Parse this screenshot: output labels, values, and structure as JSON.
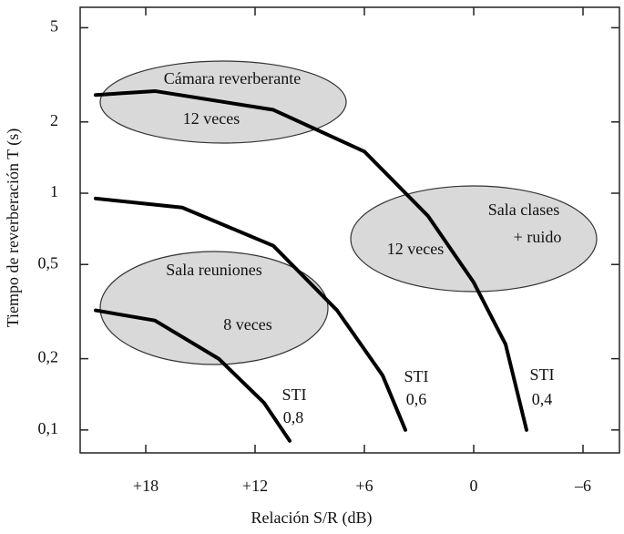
{
  "chart_data": {
    "type": "line",
    "log_y": true,
    "xlabel": "Relación S/R (dB)",
    "ylabel": "Tiempo de reverberación T (s)",
    "xlim": [
      21.6,
      -8
    ],
    "ylim": [
      0.08,
      6.1
    ],
    "xticks": [
      {
        "value": 18,
        "label": "+18"
      },
      {
        "value": 12,
        "label": "+12"
      },
      {
        "value": 6,
        "label": "+6"
      },
      0,
      {
        "value": -6,
        "label": "–6"
      }
    ],
    "yticks": [
      {
        "value": 0.1,
        "label": "0,1"
      },
      {
        "value": 0.2,
        "label": "0,2"
      },
      {
        "value": 0.5,
        "label": "0,5"
      },
      1,
      2,
      5
    ],
    "series": [
      {
        "color": "#000000",
        "x": [
          20.75,
          17.5,
          11,
          6,
          2.5,
          0,
          -1.75,
          -2.9
        ],
        "values": [
          2.6,
          2.7,
          2.25,
          1.5,
          0.8,
          0.42,
          0.23,
          0.1
        ]
      },
      {
        "color": "#000000",
        "x": [
          20.75,
          16,
          11,
          7.5,
          5,
          3.75
        ],
        "values": [
          0.95,
          0.87,
          0.6,
          0.32,
          0.17,
          0.1
        ]
      },
      {
        "color": "#000000",
        "x": [
          20.75,
          17.5,
          14,
          11.5,
          10.1
        ],
        "values": [
          0.32,
          0.29,
          0.2,
          0.13,
          0.09
        ]
      }
    ],
    "annotations": [
      {
        "lines": [
          "Cámara reverberante",
          "12 veces"
        ]
      },
      {
        "lines": [
          "Sala clases",
          "+ ruido",
          "12 veces"
        ]
      },
      {
        "lines": [
          "Sala reuniones",
          "8 veces"
        ]
      },
      {
        "lines": [
          "STI",
          "0,8"
        ]
      },
      {
        "lines": [
          "STI",
          "0,6"
        ]
      },
      {
        "lines": [
          "STI",
          "0,4"
        ]
      }
    ]
  }
}
